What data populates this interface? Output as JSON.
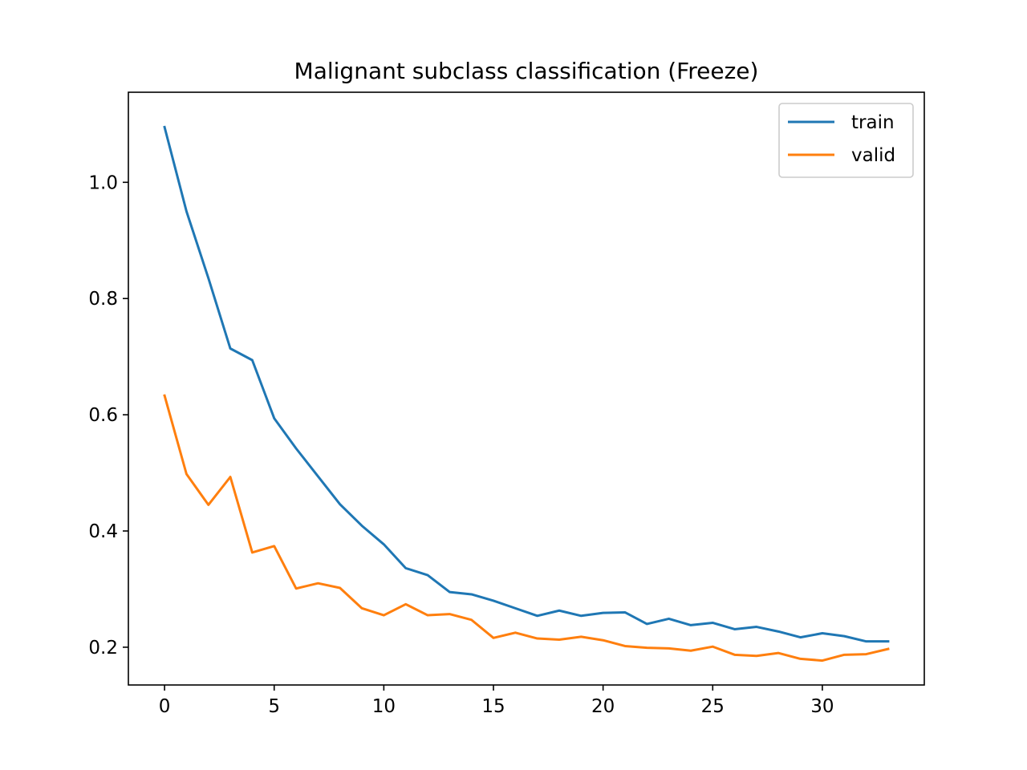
{
  "chart_data": {
    "type": "line",
    "title": "Malignant subclass classification (Freeze)",
    "xlabel": "",
    "ylabel": "",
    "xlim": [
      -1.65,
      34.65
    ],
    "ylim": [
      0.135,
      1.155
    ],
    "xticks": [
      0,
      5,
      10,
      15,
      20,
      25,
      30
    ],
    "yticks": [
      0.2,
      0.4,
      0.6,
      0.8,
      1.0
    ],
    "ytick_labels": [
      "0.2",
      "0.4",
      "0.6",
      "0.8",
      "1.0"
    ],
    "grid": false,
    "legend_position": "top-right",
    "x": [
      0,
      1,
      2,
      3,
      4,
      5,
      6,
      7,
      8,
      9,
      10,
      11,
      12,
      13,
      14,
      15,
      16,
      17,
      18,
      19,
      20,
      21,
      22,
      23,
      24,
      25,
      26,
      27,
      28,
      29,
      30,
      31,
      32,
      33
    ],
    "series": [
      {
        "name": "train",
        "color": "#1f77b4",
        "values": [
          1.095,
          0.95,
          0.835,
          0.714,
          0.694,
          0.594,
          0.542,
          0.494,
          0.446,
          0.409,
          0.377,
          0.336,
          0.324,
          0.295,
          0.291,
          0.28,
          0.267,
          0.254,
          0.263,
          0.254,
          0.259,
          0.26,
          0.24,
          0.249,
          0.238,
          0.242,
          0.231,
          0.235,
          0.227,
          0.217,
          0.224,
          0.219,
          0.21,
          0.21
        ]
      },
      {
        "name": "valid",
        "color": "#ff7f0e",
        "values": [
          0.633,
          0.498,
          0.445,
          0.493,
          0.363,
          0.374,
          0.301,
          0.31,
          0.302,
          0.267,
          0.255,
          0.274,
          0.255,
          0.257,
          0.247,
          0.216,
          0.225,
          0.215,
          0.213,
          0.218,
          0.212,
          0.202,
          0.199,
          0.198,
          0.194,
          0.201,
          0.187,
          0.185,
          0.19,
          0.18,
          0.177,
          0.187,
          0.188,
          0.197
        ]
      }
    ]
  }
}
